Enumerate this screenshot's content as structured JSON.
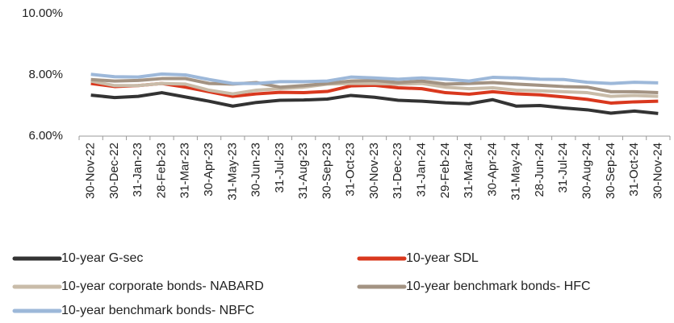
{
  "chart_data": {
    "type": "line",
    "categories": [
      "30-Nov-22",
      "30-Dec-22",
      "31-Jan-23",
      "28-Feb-23",
      "31-Mar-23",
      "30-Apr-23",
      "31-May-23",
      "30-Jun-23",
      "31-Jul-23",
      "31-Aug-23",
      "30-Sep-23",
      "31-Oct-23",
      "30-Nov-23",
      "31-Dec-23",
      "31-Jan-24",
      "29-Feb-24",
      "31-Mar-24",
      "30-Apr-24",
      "31-May-24",
      "28-Jun-24",
      "31-Jul-24",
      "30-Aug-24",
      "30-Sep-24",
      "31-Oct-24",
      "30-Nov-24"
    ],
    "series": [
      {
        "name": "10-year G-sec",
        "color": "#333333",
        "values": [
          7.34,
          7.26,
          7.3,
          7.42,
          7.28,
          7.14,
          6.98,
          7.1,
          7.17,
          7.18,
          7.21,
          7.33,
          7.27,
          7.17,
          7.14,
          7.09,
          7.06,
          7.19,
          6.98,
          7.0,
          6.92,
          6.86,
          6.75,
          6.82,
          6.74
        ]
      },
      {
        "name": "10-year SDL",
        "color": "#d9381e",
        "values": [
          7.72,
          7.62,
          7.65,
          7.72,
          7.6,
          7.45,
          7.3,
          7.38,
          7.43,
          7.42,
          7.46,
          7.64,
          7.66,
          7.58,
          7.55,
          7.42,
          7.37,
          7.45,
          7.38,
          7.35,
          7.28,
          7.2,
          7.08,
          7.12,
          7.14
        ]
      },
      {
        "name": "10-year corporate bonds- NABARD",
        "color": "#c9bca9",
        "values": [
          7.8,
          7.65,
          7.65,
          7.72,
          7.7,
          7.5,
          7.38,
          7.5,
          7.55,
          7.6,
          7.7,
          7.72,
          7.72,
          7.7,
          7.72,
          7.6,
          7.55,
          7.58,
          7.5,
          7.48,
          7.45,
          7.42,
          7.3,
          7.33,
          7.3
        ]
      },
      {
        "name": "10-year benchmark bonds- HFC",
        "color": "#a39383",
        "values": [
          7.85,
          7.8,
          7.82,
          7.88,
          7.88,
          7.72,
          7.7,
          7.75,
          7.6,
          7.65,
          7.72,
          7.8,
          7.82,
          7.75,
          7.8,
          7.7,
          7.72,
          7.75,
          7.7,
          7.66,
          7.62,
          7.6,
          7.45,
          7.45,
          7.42
        ]
      },
      {
        "name": "10-year benchmark bonds- NBFC",
        "color": "#9db8d9",
        "values": [
          8.02,
          7.94,
          7.93,
          8.03,
          8.0,
          7.85,
          7.72,
          7.72,
          7.78,
          7.78,
          7.8,
          7.93,
          7.9,
          7.86,
          7.9,
          7.86,
          7.8,
          7.92,
          7.9,
          7.86,
          7.85,
          7.76,
          7.72,
          7.76,
          7.74
        ]
      }
    ],
    "ylim": [
      6,
      10
    ],
    "yticks": [
      {
        "value": 6,
        "label": "6.00%"
      },
      {
        "value": 8,
        "label": "8.00%"
      },
      {
        "value": 10,
        "label": "10.00%"
      }
    ]
  }
}
